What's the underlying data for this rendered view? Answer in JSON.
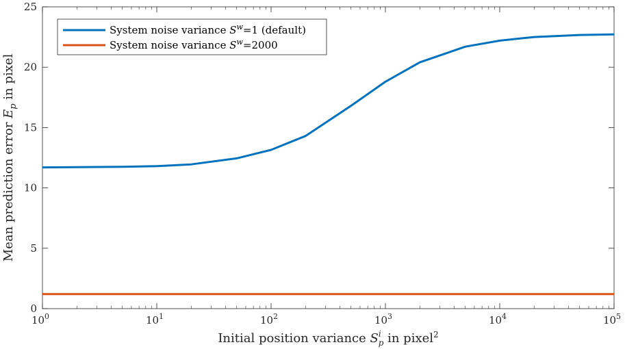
{
  "chart_data": {
    "type": "line",
    "xscale": "log",
    "xlim": [
      1,
      100000
    ],
    "ylim": [
      0,
      25
    ],
    "grid": false,
    "legend_position": "top-left",
    "xlabel": "Initial position variance S_p^i in pixel^2",
    "ylabel": "Mean prediction error E_p in pixel",
    "x_ticks": [
      1,
      10,
      100,
      1000,
      10000,
      100000
    ],
    "x_tick_labels": [
      {
        "base": "10",
        "exp": "0"
      },
      {
        "base": "10",
        "exp": "1"
      },
      {
        "base": "10",
        "exp": "2"
      },
      {
        "base": "10",
        "exp": "3"
      },
      {
        "base": "10",
        "exp": "4"
      },
      {
        "base": "10",
        "exp": "5"
      }
    ],
    "y_ticks": [
      0,
      5,
      10,
      15,
      20,
      25
    ],
    "y_tick_labels": [
      "0",
      "5",
      "10",
      "15",
      "20",
      "25"
    ],
    "series": [
      {
        "name": "System noise variance S^w=1 (default)",
        "color": "#0072BD",
        "x": [
          1,
          2,
          5,
          10,
          20,
          50,
          100,
          200,
          500,
          1000,
          2000,
          5000,
          10000,
          20000,
          50000,
          100000
        ],
        "y": [
          11.7,
          11.72,
          11.75,
          11.8,
          11.95,
          12.45,
          13.15,
          14.3,
          16.8,
          18.8,
          20.4,
          21.7,
          22.2,
          22.5,
          22.67,
          22.72
        ]
      },
      {
        "name": "System noise variance S^w=2000",
        "color": "#D95319",
        "x": [
          1,
          10,
          100,
          1000,
          10000,
          100000
        ],
        "y": [
          1.2,
          1.2,
          1.2,
          1.2,
          1.2,
          1.2
        ]
      }
    ]
  }
}
